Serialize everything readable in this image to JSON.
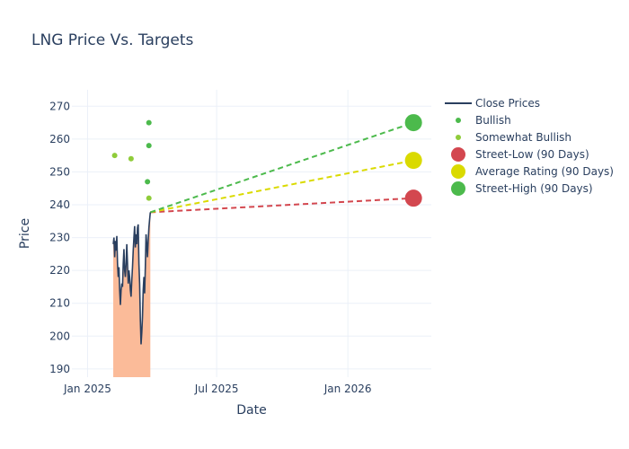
{
  "chart_data": {
    "type": "line",
    "title": "LNG Price Vs. Targets",
    "xlabel": "Date",
    "ylabel": "Price",
    "xlim": [
      "2024-12-10",
      "2026-04-28"
    ],
    "ylim": [
      187.5,
      275
    ],
    "grid": true,
    "legend_position": "top-right",
    "x_ticks": [
      {
        "date": "2025-01-01",
        "label": "Jan 2025"
      },
      {
        "date": "2025-07-01",
        "label": "Jul 2025"
      },
      {
        "date": "2026-01-01",
        "label": "Jan 2026"
      }
    ],
    "y_ticks": [
      190,
      200,
      210,
      220,
      230,
      240,
      250,
      260,
      270
    ],
    "colors": {
      "close": "#2a3f5f",
      "fill": "#fbbb99",
      "bullish": "#4cba4c",
      "somewhat_bullish": "#8fcc3a",
      "street_low": "#d3474f",
      "average": "#dada00",
      "street_high": "#4cba4c",
      "grid": "#ebf0f8"
    },
    "close_prices": [
      [
        "2025-02-06",
        228
      ],
      [
        "2025-02-07",
        230
      ],
      [
        "2025-02-08",
        224
      ],
      [
        "2025-02-09",
        229
      ],
      [
        "2025-02-10",
        226
      ],
      [
        "2025-02-11",
        230.5
      ],
      [
        "2025-02-12",
        222
      ],
      [
        "2025-02-13",
        218
      ],
      [
        "2025-02-14",
        221
      ],
      [
        "2025-02-15",
        214
      ],
      [
        "2025-02-16",
        209.5
      ],
      [
        "2025-02-17",
        214
      ],
      [
        "2025-02-18",
        216
      ],
      [
        "2025-02-19",
        215
      ],
      [
        "2025-02-20",
        222
      ],
      [
        "2025-02-21",
        226.5
      ],
      [
        "2025-02-22",
        220
      ],
      [
        "2025-02-23",
        218
      ],
      [
        "2025-02-24",
        222
      ],
      [
        "2025-02-25",
        228
      ],
      [
        "2025-02-26",
        222
      ],
      [
        "2025-02-27",
        216
      ],
      [
        "2025-02-28",
        220
      ],
      [
        "2025-03-01",
        218
      ],
      [
        "2025-03-02",
        214
      ],
      [
        "2025-03-03",
        212
      ],
      [
        "2025-03-04",
        217
      ],
      [
        "2025-03-05",
        221
      ],
      [
        "2025-03-06",
        226
      ],
      [
        "2025-03-07",
        230
      ],
      [
        "2025-03-08",
        233.5
      ],
      [
        "2025-03-09",
        227
      ],
      [
        "2025-03-10",
        231
      ],
      [
        "2025-03-11",
        228
      ],
      [
        "2025-03-12",
        233
      ],
      [
        "2025-03-13",
        234
      ],
      [
        "2025-03-14",
        222
      ],
      [
        "2025-03-15",
        216
      ],
      [
        "2025-03-16",
        205
      ],
      [
        "2025-03-17",
        197.5
      ],
      [
        "2025-03-18",
        201
      ],
      [
        "2025-03-19",
        206
      ],
      [
        "2025-03-20",
        214
      ],
      [
        "2025-03-21",
        218
      ],
      [
        "2025-03-22",
        213
      ],
      [
        "2025-03-23",
        221
      ],
      [
        "2025-03-24",
        231
      ],
      [
        "2025-03-25",
        228
      ],
      [
        "2025-03-26",
        224
      ],
      [
        "2025-03-27",
        229
      ],
      [
        "2025-03-28",
        233
      ],
      [
        "2025-03-29",
        235.5
      ],
      [
        "2025-03-30",
        237.7
      ]
    ],
    "analyst_ratings": [
      {
        "date": "2025-02-08",
        "price": 255,
        "rating": "Somewhat Bullish"
      },
      {
        "date": "2025-03-03",
        "price": 254,
        "rating": "Somewhat Bullish"
      },
      {
        "date": "2025-03-26",
        "price": 247,
        "rating": "Bullish"
      },
      {
        "date": "2025-03-28",
        "price": 265,
        "rating": "Bullish"
      },
      {
        "date": "2025-03-28",
        "price": 258,
        "rating": "Bullish"
      },
      {
        "date": "2025-03-28",
        "price": 242,
        "rating": "Somewhat Bullish"
      }
    ],
    "projection_start": {
      "date": "2025-03-30",
      "price": 237.7
    },
    "targets": [
      {
        "name": "Street-Low (90 Days)",
        "date": "2026-04-03",
        "price": 242
      },
      {
        "name": "Average Rating (90 Days)",
        "date": "2026-04-03",
        "price": 253.5
      },
      {
        "name": "Street-High (90 Days)",
        "date": "2026-04-03",
        "price": 265
      }
    ],
    "legend": [
      {
        "label": "Close Prices",
        "kind": "line",
        "color": "#2a3f5f"
      },
      {
        "label": "Bullish",
        "kind": "dot-small",
        "color": "#4cba4c"
      },
      {
        "label": "Somewhat Bullish",
        "kind": "dot-small",
        "color": "#8fcc3a"
      },
      {
        "label": "Street-Low (90 Days)",
        "kind": "dot-large",
        "color": "#d3474f"
      },
      {
        "label": "Average Rating (90 Days)",
        "kind": "dot-large",
        "color": "#dada00"
      },
      {
        "label": "Street-High (90 Days)",
        "kind": "dot-large",
        "color": "#4cba4c"
      }
    ]
  }
}
